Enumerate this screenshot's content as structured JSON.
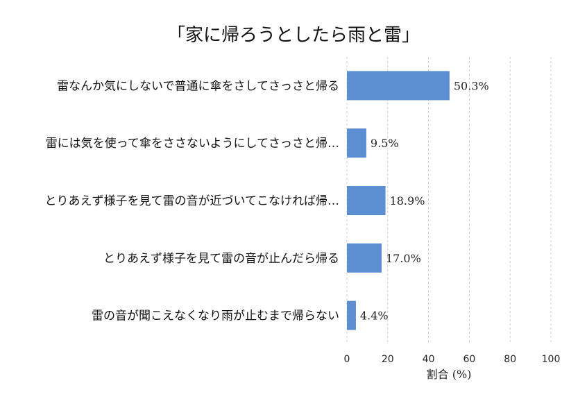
{
  "chart_data": {
    "type": "bar",
    "orientation": "horizontal",
    "title": "「家に帰ろうとしたら雨と雷」",
    "xlabel": "割合 (%)",
    "ylabel": "",
    "categories": [
      "雷なんか気にしないで普通に傘をさしてさっさと帰る",
      "雷には気を使って傘をささないようにしてさっさと帰…",
      "とりあえず様子を見て雷の音が近づいてこなければ帰…",
      "とりあえず様子を見て雷の音が止んだら帰る",
      "雷の音が聞こえなくなり雨が止むまで帰らない"
    ],
    "values": [
      50.3,
      9.5,
      18.9,
      17.0,
      4.4
    ],
    "value_labels": [
      "50.3%",
      "9.5%",
      "18.9%",
      "17.0%",
      "4.4%"
    ],
    "xlim": [
      0,
      100
    ],
    "xticks": [
      0,
      20,
      40,
      60,
      80,
      100
    ],
    "xtick_labels": [
      "0",
      "20",
      "40",
      "60",
      "80",
      "100"
    ],
    "grid": "vertical dashed",
    "bar_color": "#5b8fd2",
    "grid_color": "#cccccc"
  }
}
